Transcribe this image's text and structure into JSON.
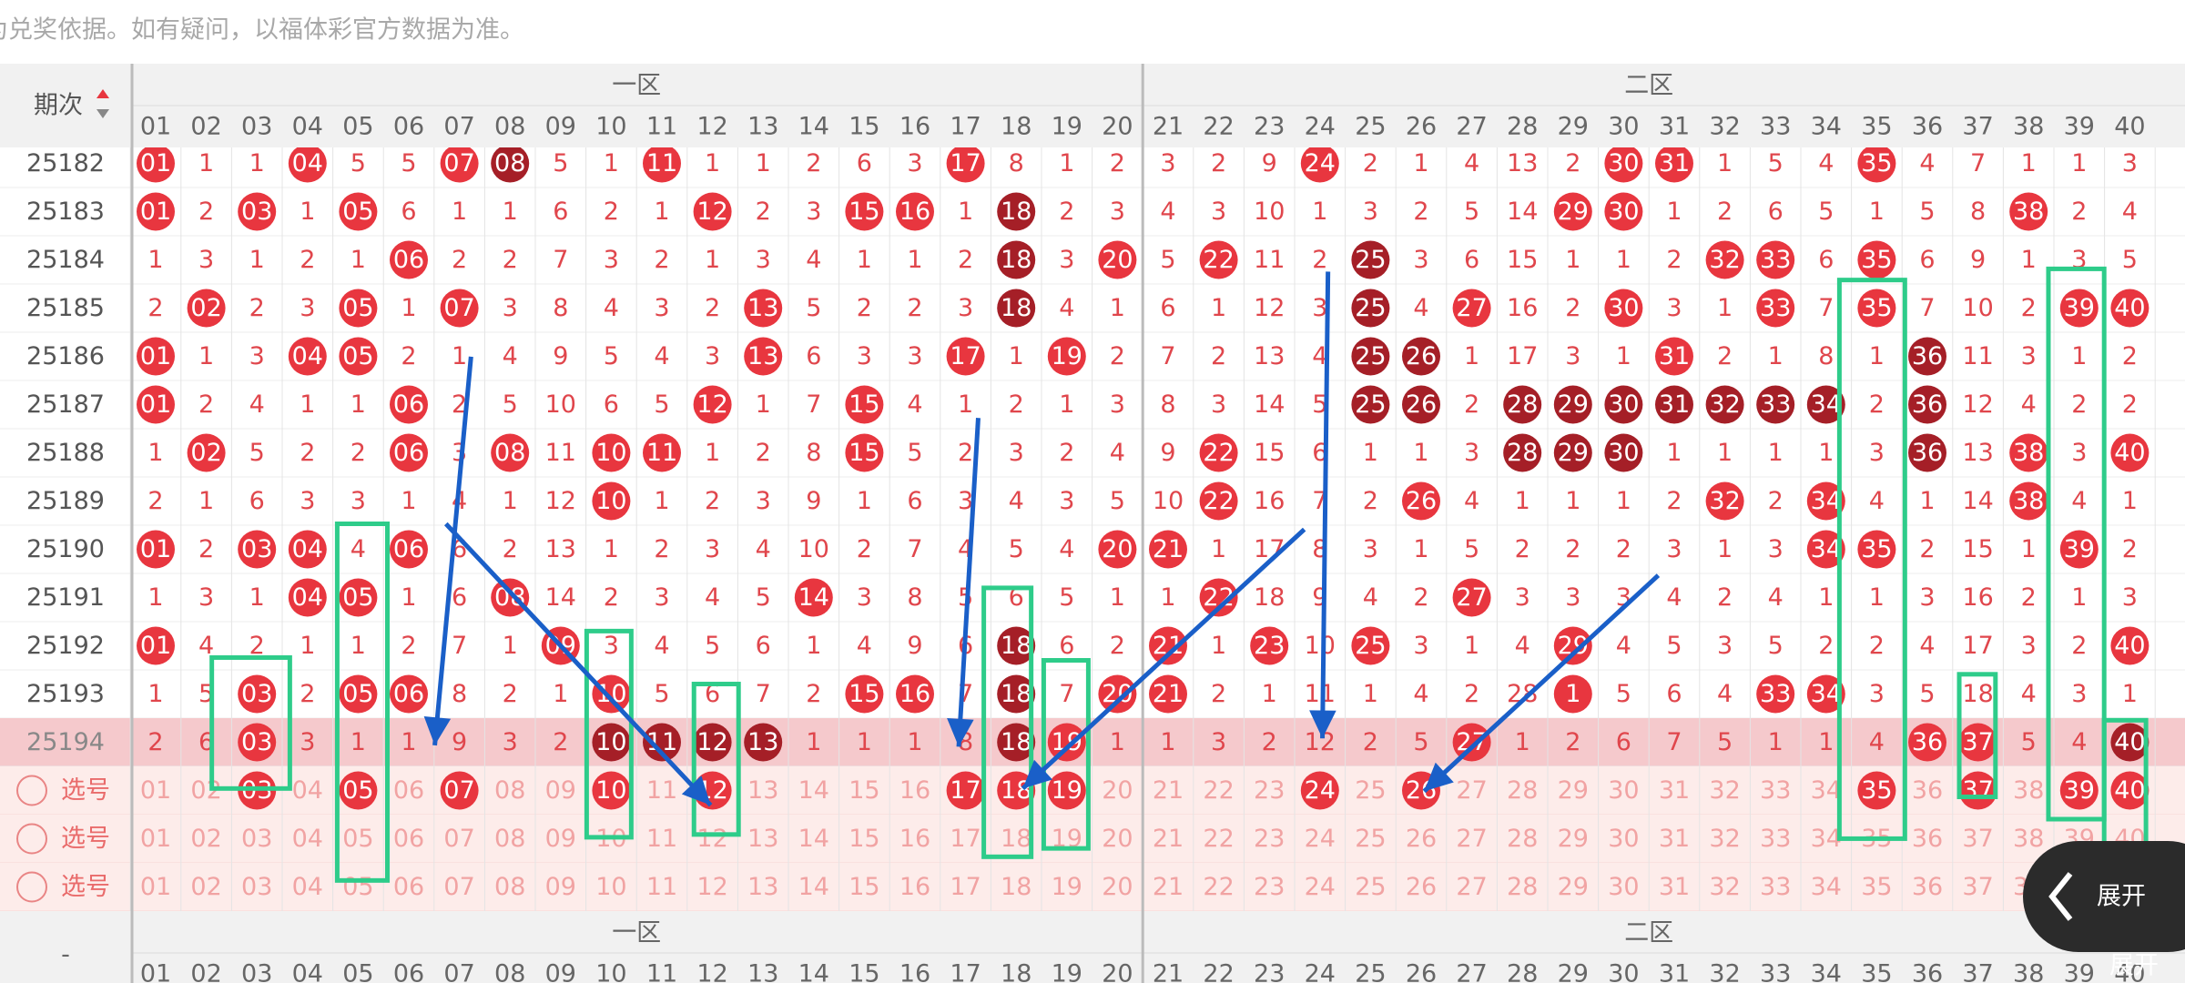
{
  "note": "注：开奖结果来源于网络，仅供参考不作为兑奖依据。如有疑问，以福体彩官方数据为准。",
  "header": {
    "issue_label": "期次",
    "zones": [
      "一区",
      "二区"
    ],
    "footer_issue": "-"
  },
  "columns": [
    "01",
    "02",
    "03",
    "04",
    "05",
    "06",
    "07",
    "08",
    "09",
    "10",
    "11",
    "12",
    "13",
    "14",
    "15",
    "16",
    "17",
    "18",
    "19",
    "20",
    "21",
    "22",
    "23",
    "24",
    "25",
    "26",
    "27",
    "28",
    "29",
    "30",
    "31",
    "32",
    "33",
    "34",
    "35",
    "36",
    "37",
    "38",
    "39",
    "40"
  ],
  "colors": {
    "ball": "#e8363f",
    "repeat_ball": "#a51f27",
    "miss_text": "#e0464c",
    "highlight": "#f5c9cc",
    "select_bg": "#fdecea",
    "select_text": "#f1a3a3"
  },
  "rows": [
    {
      "issue": "25182",
      "cells": [
        "01",
        "1",
        "1",
        "04",
        "5",
        "5",
        "07",
        "08",
        "5",
        "1",
        "11",
        "1",
        "1",
        "2",
        "6",
        "3",
        "17",
        "8",
        "1",
        "2",
        "3",
        "2",
        "9",
        "24",
        "2",
        "1",
        "4",
        "13",
        "2",
        "30",
        "31",
        "1",
        "5",
        "4",
        "35",
        "4",
        "7",
        "1",
        "1",
        "3"
      ],
      "red": [
        0,
        3,
        6,
        10,
        16,
        23,
        29,
        30,
        34
      ],
      "dark": [
        7
      ]
    },
    {
      "issue": "25183",
      "cells": [
        "01",
        "2",
        "03",
        "1",
        "05",
        "6",
        "1",
        "1",
        "6",
        "2",
        "1",
        "12",
        "2",
        "3",
        "15",
        "16",
        "1",
        "18",
        "2",
        "3",
        "4",
        "3",
        "10",
        "1",
        "3",
        "2",
        "5",
        "14",
        "29",
        "30",
        "1",
        "2",
        "6",
        "5",
        "1",
        "5",
        "8",
        "38",
        "2",
        "4"
      ],
      "red": [
        0,
        2,
        4,
        11,
        14,
        15,
        28,
        29,
        37
      ],
      "dark": [
        17
      ]
    },
    {
      "issue": "25184",
      "cells": [
        "1",
        "3",
        "1",
        "2",
        "1",
        "06",
        "2",
        "2",
        "7",
        "3",
        "2",
        "1",
        "3",
        "4",
        "1",
        "1",
        "2",
        "18",
        "3",
        "20",
        "5",
        "22",
        "11",
        "2",
        "25",
        "3",
        "6",
        "15",
        "1",
        "1",
        "2",
        "32",
        "33",
        "6",
        "35",
        "6",
        "9",
        "1",
        "3",
        "5"
      ],
      "red": [
        5,
        19,
        21,
        31,
        32,
        34
      ],
      "dark": [
        17,
        24
      ]
    },
    {
      "issue": "25185",
      "cells": [
        "2",
        "02",
        "2",
        "3",
        "05",
        "1",
        "07",
        "3",
        "8",
        "4",
        "3",
        "2",
        "13",
        "5",
        "2",
        "2",
        "3",
        "18",
        "4",
        "1",
        "6",
        "1",
        "12",
        "3",
        "25",
        "4",
        "27",
        "16",
        "2",
        "30",
        "3",
        "1",
        "33",
        "7",
        "35",
        "7",
        "10",
        "2",
        "39",
        "40"
      ],
      "red": [
        1,
        4,
        6,
        12,
        26,
        29,
        32,
        34,
        38,
        39
      ],
      "dark": [
        17,
        24
      ]
    },
    {
      "issue": "25186",
      "cells": [
        "01",
        "1",
        "3",
        "04",
        "05",
        "2",
        "1",
        "4",
        "9",
        "5",
        "4",
        "3",
        "13",
        "6",
        "3",
        "3",
        "17",
        "1",
        "19",
        "2",
        "7",
        "2",
        "13",
        "4",
        "25",
        "26",
        "1",
        "17",
        "3",
        "1",
        "31",
        "2",
        "1",
        "8",
        "1",
        "36",
        "11",
        "3",
        "1",
        "2"
      ],
      "red": [
        0,
        3,
        4,
        12,
        16,
        18,
        30
      ],
      "dark": [
        24,
        25,
        35
      ]
    },
    {
      "issue": "25187",
      "cells": [
        "01",
        "2",
        "4",
        "1",
        "1",
        "06",
        "2",
        "5",
        "10",
        "6",
        "5",
        "12",
        "1",
        "7",
        "15",
        "4",
        "1",
        "2",
        "1",
        "3",
        "8",
        "3",
        "14",
        "5",
        "25",
        "26",
        "2",
        "28",
        "29",
        "30",
        "31",
        "32",
        "33",
        "34",
        "2",
        "36",
        "12",
        "4",
        "2",
        "2"
      ],
      "red": [
        0,
        5,
        11,
        14
      ],
      "dark": [
        24,
        25,
        27,
        28,
        29,
        30,
        31,
        32,
        33,
        35
      ]
    },
    {
      "issue": "25188",
      "cells": [
        "1",
        "02",
        "5",
        "2",
        "2",
        "06",
        "3",
        "08",
        "11",
        "10",
        "11",
        "1",
        "2",
        "8",
        "15",
        "5",
        "2",
        "3",
        "2",
        "4",
        "9",
        "22",
        "15",
        "6",
        "1",
        "1",
        "3",
        "28",
        "29",
        "30",
        "1",
        "1",
        "1",
        "1",
        "3",
        "36",
        "13",
        "38",
        "3",
        "40"
      ],
      "red": [
        1,
        5,
        7,
        9,
        10,
        14,
        21,
        37,
        39
      ],
      "dark": [
        27,
        28,
        29,
        35
      ]
    },
    {
      "issue": "25189",
      "cells": [
        "2",
        "1",
        "6",
        "3",
        "3",
        "1",
        "4",
        "1",
        "12",
        "10",
        "1",
        "2",
        "3",
        "9",
        "1",
        "6",
        "3",
        "4",
        "3",
        "5",
        "10",
        "22",
        "16",
        "7",
        "2",
        "26",
        "4",
        "1",
        "1",
        "1",
        "2",
        "32",
        "2",
        "34",
        "4",
        "1",
        "14",
        "38",
        "4",
        "1"
      ],
      "red": [
        9,
        21,
        25,
        31,
        33,
        37
      ],
      "dark": []
    },
    {
      "issue": "25190",
      "cells": [
        "01",
        "2",
        "03",
        "04",
        "4",
        "06",
        "6",
        "2",
        "13",
        "1",
        "2",
        "3",
        "4",
        "10",
        "2",
        "7",
        "4",
        "5",
        "4",
        "20",
        "21",
        "1",
        "17",
        "8",
        "3",
        "1",
        "5",
        "2",
        "2",
        "2",
        "3",
        "1",
        "3",
        "34",
        "35",
        "2",
        "15",
        "1",
        "39",
        "2"
      ],
      "red": [
        0,
        2,
        3,
        5,
        19,
        20,
        33,
        34,
        38
      ],
      "dark": []
    },
    {
      "issue": "25191",
      "cells": [
        "1",
        "3",
        "1",
        "04",
        "05",
        "1",
        "6",
        "08",
        "14",
        "2",
        "3",
        "4",
        "5",
        "14",
        "3",
        "8",
        "5",
        "6",
        "5",
        "1",
        "1",
        "22",
        "18",
        "9",
        "4",
        "2",
        "27",
        "3",
        "3",
        "3",
        "4",
        "2",
        "4",
        "1",
        "1",
        "3",
        "16",
        "2",
        "1",
        "3"
      ],
      "red": [
        3,
        4,
        7,
        13,
        21,
        26
      ],
      "dark": []
    },
    {
      "issue": "25192",
      "cells": [
        "01",
        "4",
        "2",
        "1",
        "1",
        "2",
        "7",
        "1",
        "09",
        "3",
        "4",
        "5",
        "6",
        "1",
        "4",
        "9",
        "6",
        "18",
        "6",
        "2",
        "21",
        "1",
        "23",
        "10",
        "25",
        "3",
        "1",
        "4",
        "29",
        "4",
        "5",
        "3",
        "5",
        "2",
        "2",
        "4",
        "17",
        "3",
        "2",
        "40"
      ],
      "red": [
        0,
        8,
        20,
        22,
        24,
        28,
        39
      ],
      "dark": [
        17
      ]
    },
    {
      "issue": "25193",
      "cells": [
        "1",
        "5",
        "03",
        "2",
        "05",
        "06",
        "8",
        "2",
        "1",
        "10",
        "5",
        "6",
        "7",
        "2",
        "15",
        "16",
        "7",
        "18",
        "7",
        "20",
        "21",
        "2",
        "1",
        "11",
        "1",
        "4",
        "2",
        "28",
        "1",
        "5",
        "6",
        "4",
        "33",
        "34",
        "3",
        "5",
        "18",
        "4",
        "3",
        "1"
      ],
      "red": [
        2,
        4,
        5,
        9,
        14,
        15,
        19,
        20,
        28,
        32,
        33
      ],
      "dark": [
        17
      ]
    },
    {
      "issue": "25194",
      "highlight": true,
      "cells": [
        "2",
        "6",
        "03",
        "3",
        "1",
        "1",
        "9",
        "3",
        "2",
        "10",
        "11",
        "12",
        "13",
        "1",
        "1",
        "1",
        "8",
        "18",
        "19",
        "1",
        "1",
        "3",
        "2",
        "12",
        "2",
        "5",
        "27",
        "1",
        "2",
        "6",
        "7",
        "5",
        "1",
        "1",
        "4",
        "36",
        "37",
        "5",
        "4",
        "40"
      ],
      "red": [
        2,
        18,
        26,
        35,
        36
      ],
      "dark": [
        9,
        10,
        11,
        12,
        17,
        39
      ]
    }
  ],
  "select_rows": [
    {
      "label": "选号",
      "red": [
        2,
        4,
        6,
        9,
        11,
        16,
        17,
        18,
        23,
        25,
        34,
        36,
        38,
        39
      ]
    },
    {
      "label": "选号",
      "red": []
    },
    {
      "label": "选号",
      "red": []
    }
  ],
  "button": {
    "label": "展开",
    "caption": "展开"
  }
}
